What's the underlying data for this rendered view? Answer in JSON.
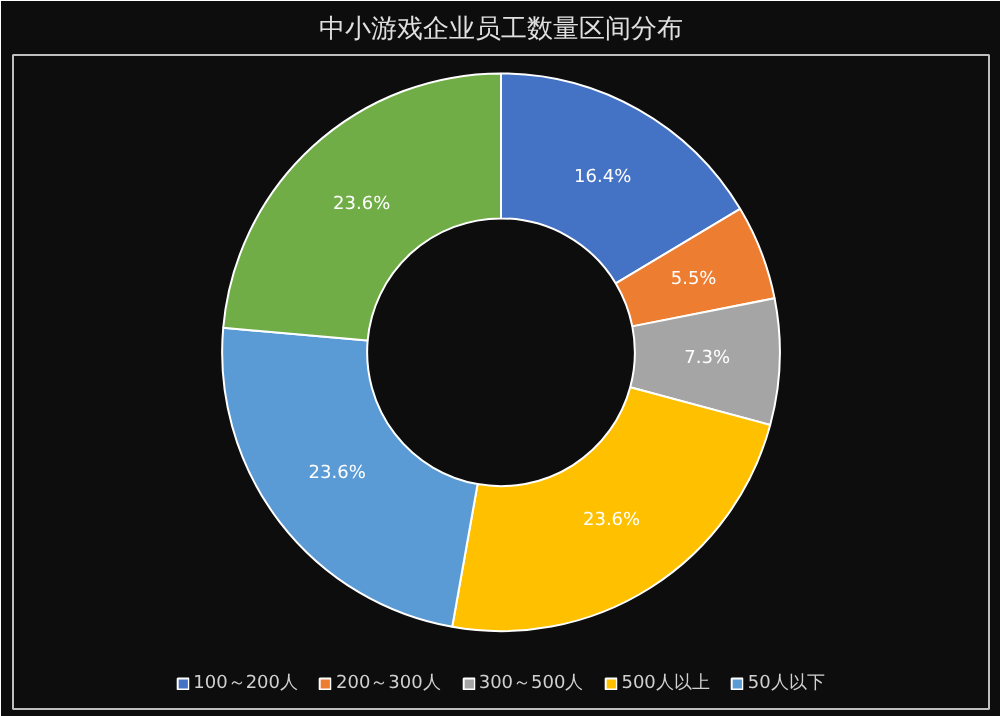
{
  "chart_data": {
    "type": "donut",
    "title": "中小游戏企业员工数量区间分布",
    "categories": [
      "100～200人",
      "200～300人",
      "300～500人",
      "500人以上",
      "50人以下",
      null
    ],
    "values": [
      16.4,
      5.5,
      7.3,
      23.6,
      23.6,
      23.6
    ],
    "colors": [
      "#4472c4",
      "#ed7d31",
      "#a5a5a5",
      "#ffc000",
      "#5b9bd5",
      "#70ad47"
    ],
    "value_labels": [
      "16.4%",
      "5.5%",
      "7.3%",
      "23.6%",
      "23.6%",
      "23.6%"
    ],
    "legend": "bottom"
  }
}
